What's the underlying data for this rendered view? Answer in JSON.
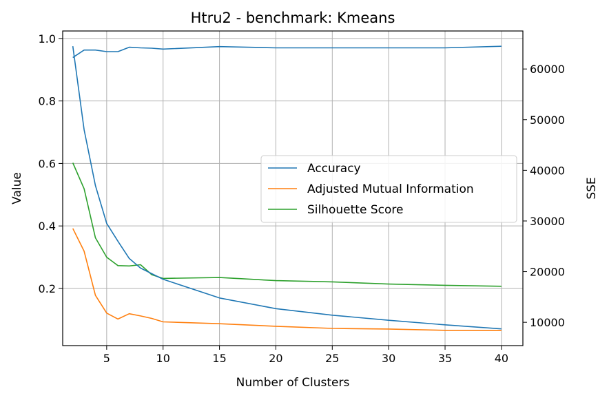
{
  "chart_data": {
    "type": "line",
    "title": "Htru2 - benchmark: Kmeans",
    "xlabel": "Number of Clusters",
    "ylabel": "Value",
    "y2label": "SSE",
    "xlim": [
      1.1,
      41.9
    ],
    "ylim": [
      0.017,
      1.024
    ],
    "y2lim": [
      5400,
      67500
    ],
    "grid": true,
    "legend_position": "center-right",
    "x_ticks": [
      5,
      10,
      15,
      20,
      25,
      30,
      35,
      40
    ],
    "y_ticks": [
      0.2,
      0.4,
      0.6,
      0.8,
      1.0
    ],
    "y2_ticks": [
      10000,
      20000,
      30000,
      40000,
      50000,
      60000
    ],
    "series": [
      {
        "name": "Accuracy",
        "axis": "left",
        "color": "#1f77b4",
        "x": [
          2,
          3,
          4,
          5,
          6,
          7,
          8,
          9,
          10,
          15,
          20,
          25,
          30,
          35,
          40
        ],
        "values": [
          0.939,
          0.963,
          0.963,
          0.958,
          0.958,
          0.972,
          0.97,
          0.969,
          0.966,
          0.974,
          0.97,
          0.97,
          0.97,
          0.97,
          0.975
        ]
      },
      {
        "name": "Adjusted Mutual Information",
        "axis": "left",
        "color": "#ff7f0e",
        "x": [
          2,
          3,
          4,
          5,
          6,
          7,
          8,
          9,
          10,
          15,
          20,
          25,
          30,
          35,
          40
        ],
        "values": [
          0.392,
          0.319,
          0.178,
          0.121,
          0.102,
          0.119,
          0.112,
          0.104,
          0.093,
          0.087,
          0.079,
          0.072,
          0.07,
          0.066,
          0.065
        ]
      },
      {
        "name": "Silhouette Score",
        "axis": "left",
        "color": "#2ca02c",
        "x": [
          2,
          3,
          4,
          5,
          6,
          7,
          8,
          9,
          10,
          15,
          20,
          25,
          30,
          35,
          40
        ],
        "values": [
          0.602,
          0.519,
          0.362,
          0.3,
          0.273,
          0.272,
          0.276,
          0.244,
          0.232,
          0.235,
          0.225,
          0.221,
          0.214,
          0.21,
          0.207
        ]
      },
      {
        "name": "SSE",
        "axis": "right",
        "color": "#1f77b4",
        "x": [
          2,
          3,
          4,
          5,
          6,
          7,
          8,
          9,
          10,
          15,
          20,
          25,
          30,
          35,
          40
        ],
        "values": [
          64500,
          48000,
          37000,
          29500,
          26000,
          22600,
          20700,
          19600,
          18500,
          14800,
          12700,
          11400,
          10400,
          9500,
          8700
        ]
      }
    ],
    "legend_series": [
      "Accuracy",
      "Adjusted Mutual Information",
      "Silhouette Score"
    ]
  }
}
